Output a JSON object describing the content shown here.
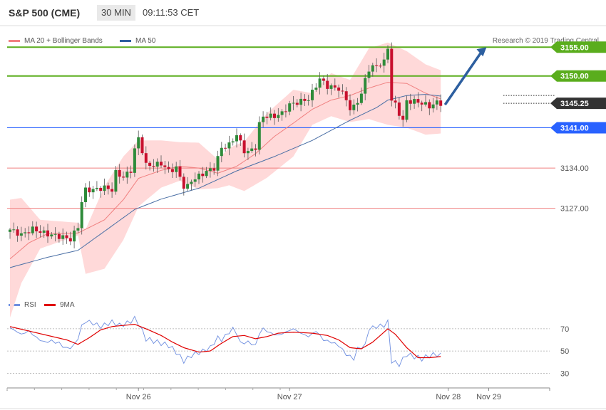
{
  "header": {
    "symbol": "S&P 500 (CME)",
    "timeframe": "30 MIN",
    "time": "09:11:53 CET"
  },
  "legend": {
    "ma20": "MA 20 + Bollinger Bands",
    "ma50": "MA 50",
    "copyright": "Research © 2019 Trading Central"
  },
  "rsi_legend": {
    "rsi": "RSI",
    "ma9": "9MA"
  },
  "colors": {
    "green_level": "#5aad1d",
    "blue_level": "#2962ff",
    "red_level": "#f08080",
    "current_price": "#333333",
    "candle_up": "#2e8b3a",
    "candle_down": "#c8102e",
    "band": "#ffd9d9",
    "ma20": "#f08080",
    "ma50": "#4a6fa5",
    "rsi": "#6f8fe0",
    "rsi_ma": "#e00000",
    "arrow": "#2d5fa0"
  },
  "chart_data": [
    {
      "type": "candlestick",
      "levels": [
        {
          "value": 3155.0,
          "label": "3155.00",
          "style": "green"
        },
        {
          "value": 3150.0,
          "label": "3150.00",
          "style": "green"
        },
        {
          "value": 3145.25,
          "label": "3145.25",
          "style": "current"
        },
        {
          "value": 3141.0,
          "label": "3141.00",
          "style": "blue"
        },
        {
          "value": 3134.0,
          "label": "3134.00",
          "style": "red"
        },
        {
          "value": 3127.0,
          "label": "3127.00",
          "style": "red"
        },
        {
          "value": 3146.6,
          "label": "",
          "style": "dotted"
        }
      ],
      "ylim": [
        3111.5,
        3158
      ],
      "x_ticks": [
        "Nov 26",
        "Nov 27",
        "Nov 28",
        "Nov 29"
      ],
      "x_tick_positions": [
        12,
        46,
        80,
        96.5
      ],
      "n_bars": 115,
      "key_closes": [
        [
          0,
          3123.3
        ],
        [
          3,
          3122.4
        ],
        [
          6,
          3123.4
        ],
        [
          10,
          3122.5
        ],
        [
          14,
          3122.0
        ],
        [
          16,
          3121.6
        ],
        [
          18,
          3123.8
        ],
        [
          19,
          3128.2
        ],
        [
          20,
          3130.2
        ],
        [
          22,
          3130.2
        ],
        [
          25,
          3130.6
        ],
        [
          27,
          3130.2
        ],
        [
          28,
          3133.2
        ],
        [
          30,
          3132.4
        ],
        [
          32,
          3133.6
        ],
        [
          33,
          3137.2
        ],
        [
          34,
          3139.2
        ],
        [
          35,
          3137.0
        ],
        [
          36,
          3134.5
        ],
        [
          38,
          3134.5
        ],
        [
          40,
          3134.8
        ],
        [
          42,
          3133.5
        ],
        [
          44,
          3134.0
        ],
        [
          46,
          3130.8
        ],
        [
          47,
          3130.8
        ],
        [
          48,
          3131.8
        ],
        [
          50,
          3132.6
        ],
        [
          52,
          3133.4
        ],
        [
          54,
          3134.0
        ],
        [
          56,
          3137.5
        ],
        [
          58,
          3138.0
        ],
        [
          60,
          3139.8
        ],
        [
          62,
          3137.0
        ],
        [
          63,
          3136.8
        ],
        [
          65,
          3137.6
        ],
        [
          66,
          3141.6
        ],
        [
          67,
          3143.0
        ],
        [
          70,
          3143.0
        ],
        [
          72,
          3143.5
        ],
        [
          74,
          3145.0
        ],
        [
          76,
          3145.4
        ],
        [
          79,
          3146.0
        ],
        [
          82,
          3149.5
        ],
        [
          84,
          3148.2
        ],
        [
          87,
          3147.8
        ],
        [
          89,
          3146.0
        ],
        [
          90,
          3144.2
        ],
        [
          91,
          3144.6
        ],
        [
          93,
          3146.8
        ],
        [
          94,
          3149.4
        ],
        [
          95,
          3151.2
        ],
        [
          97,
          3151.8
        ],
        [
          99,
          3152.4
        ],
        [
          100,
          3155.0
        ],
        [
          101,
          3145.8
        ],
        [
          102,
          3145.0
        ],
        [
          103,
          3143.5
        ],
        [
          104,
          3142.2
        ],
        [
          105,
          3145.6
        ],
        [
          107,
          3145.6
        ],
        [
          109,
          3145.3
        ],
        [
          111,
          3144.7
        ],
        [
          113,
          3145.4
        ],
        [
          114,
          3145.25
        ]
      ],
      "key_bands": [
        [
          0,
          3128.5,
          3108.0
        ],
        [
          3,
          3128.8,
          3114.0
        ],
        [
          8,
          3125.0,
          3120.0
        ],
        [
          18,
          3124.5,
          3122.3
        ],
        [
          20,
          3123.3,
          3115.6
        ],
        [
          25,
          3130.8,
          3116.5
        ],
        [
          30,
          3136.0,
          3121.5
        ],
        [
          34,
          3138.8,
          3127.3
        ],
        [
          40,
          3138.8,
          3130.6
        ],
        [
          45,
          3138.5,
          3131.8
        ],
        [
          50,
          3138.4,
          3130.3
        ],
        [
          55,
          3135.5,
          3130.5
        ],
        [
          58,
          3137.5,
          3131.0
        ],
        [
          62,
          3138.6,
          3130.0
        ],
        [
          68,
          3143.5,
          3132.3
        ],
        [
          75,
          3147.6,
          3136.0
        ],
        [
          80,
          3147.0,
          3141.5
        ],
        [
          85,
          3150.5,
          3143.0
        ],
        [
          90,
          3149.3,
          3142.0
        ],
        [
          95,
          3154.8,
          3142.5
        ],
        [
          100,
          3155.8,
          3141.5
        ],
        [
          105,
          3154.3,
          3141.0
        ],
        [
          110,
          3152.0,
          3139.8
        ],
        [
          114,
          3151.0,
          3140.0
        ]
      ],
      "key_ma20": [
        [
          0,
          3118.2
        ],
        [
          5,
          3121.0
        ],
        [
          10,
          3122.6
        ],
        [
          18,
          3122.7
        ],
        [
          25,
          3125.0
        ],
        [
          30,
          3128.5
        ],
        [
          34,
          3132.2
        ],
        [
          40,
          3133.6
        ],
        [
          45,
          3134.3
        ],
        [
          50,
          3134.0
        ],
        [
          55,
          3133.1
        ],
        [
          60,
          3134.3
        ],
        [
          65,
          3136.5
        ],
        [
          70,
          3139.5
        ],
        [
          75,
          3141.8
        ],
        [
          80,
          3144.2
        ],
        [
          85,
          3145.8
        ],
        [
          90,
          3146.6
        ],
        [
          95,
          3147.9
        ],
        [
          100,
          3148.9
        ],
        [
          105,
          3148.7
        ],
        [
          110,
          3147.0
        ],
        [
          114,
          3146.0
        ]
      ],
      "key_ma50": [
        [
          0,
          3116.7
        ],
        [
          10,
          3118.5
        ],
        [
          18,
          3119.7
        ],
        [
          25,
          3123.0
        ],
        [
          33,
          3126.8
        ],
        [
          40,
          3128.6
        ],
        [
          50,
          3130.5
        ],
        [
          60,
          3133.5
        ],
        [
          70,
          3136.0
        ],
        [
          80,
          3138.8
        ],
        [
          90,
          3142.3
        ],
        [
          97,
          3144.5
        ],
        [
          100,
          3145.8
        ],
        [
          105,
          3146.6
        ],
        [
          110,
          3146.8
        ],
        [
          114,
          3146.5
        ]
      ],
      "arrow": {
        "from": [
          114,
          3145.0
        ],
        "to": [
          126.5,
          3155.0
        ]
      }
    },
    {
      "type": "line",
      "name": "RSI",
      "ylim": [
        20,
        84
      ],
      "y_ticks": [
        30,
        50,
        70
      ],
      "series": [
        {
          "name": "RSI",
          "points": [
            [
              0,
              71
            ],
            [
              3,
              65
            ],
            [
              5,
              68
            ],
            [
              7,
              62
            ],
            [
              9,
              58
            ],
            [
              11,
              59
            ],
            [
              13,
              57
            ],
            [
              15,
              52
            ],
            [
              17,
              55
            ],
            [
              18,
              62
            ],
            [
              19,
              72
            ],
            [
              20,
              77
            ],
            [
              22,
              75
            ],
            [
              24,
              72
            ],
            [
              27,
              76
            ],
            [
              29,
              73
            ],
            [
              31,
              75
            ],
            [
              33,
              79
            ],
            [
              34,
              75
            ],
            [
              36,
              61
            ],
            [
              38,
              59
            ],
            [
              40,
              57
            ],
            [
              42,
              55
            ],
            [
              44,
              49
            ],
            [
              46,
              41
            ],
            [
              48,
              46
            ],
            [
              51,
              50
            ],
            [
              53,
              53
            ],
            [
              55,
              62
            ],
            [
              56,
              60
            ],
            [
              58,
              67
            ],
            [
              59,
              70
            ],
            [
              60,
              66
            ],
            [
              61,
              57
            ],
            [
              63,
              58
            ],
            [
              65,
              55
            ],
            [
              66,
              66
            ],
            [
              67,
              70
            ],
            [
              69,
              66
            ],
            [
              71,
              64
            ],
            [
              73,
              67
            ],
            [
              75,
              70
            ],
            [
              77,
              66
            ],
            [
              79,
              63
            ],
            [
              81,
              68
            ],
            [
              83,
              60
            ],
            [
              85,
              58
            ],
            [
              87,
              55
            ],
            [
              89,
              47
            ],
            [
              91,
              43
            ],
            [
              92,
              52
            ],
            [
              94,
              55
            ],
            [
              95,
              70
            ],
            [
              97,
              72
            ],
            [
              99,
              73
            ],
            [
              100,
              76
            ],
            [
              101,
              41
            ],
            [
              103,
              38
            ],
            [
              105,
              47
            ],
            [
              107,
              45
            ],
            [
              109,
              43
            ],
            [
              111,
              46
            ],
            [
              113,
              47
            ],
            [
              114,
              46
            ]
          ]
        },
        {
          "name": "9MA",
          "points": [
            [
              0,
              72
            ],
            [
              5,
              68
            ],
            [
              10,
              64
            ],
            [
              15,
              60
            ],
            [
              18,
              56
            ],
            [
              21,
              62
            ],
            [
              24,
              69
            ],
            [
              27,
              72
            ],
            [
              30,
              73
            ],
            [
              33,
              74
            ],
            [
              36,
              70
            ],
            [
              40,
              64
            ],
            [
              43,
              58
            ],
            [
              46,
              53
            ],
            [
              50,
              49
            ],
            [
              53,
              50
            ],
            [
              56,
              57
            ],
            [
              59,
              63
            ],
            [
              62,
              64
            ],
            [
              65,
              61
            ],
            [
              68,
              63
            ],
            [
              71,
              66
            ],
            [
              75,
              67
            ],
            [
              80,
              66
            ],
            [
              84,
              64
            ],
            [
              87,
              60
            ],
            [
              90,
              53
            ],
            [
              93,
              52
            ],
            [
              96,
              58
            ],
            [
              99,
              67
            ],
            [
              100,
              70
            ],
            [
              102,
              65
            ],
            [
              105,
              53
            ],
            [
              108,
              44
            ],
            [
              111,
              44
            ],
            [
              114,
              45
            ]
          ]
        }
      ]
    }
  ]
}
